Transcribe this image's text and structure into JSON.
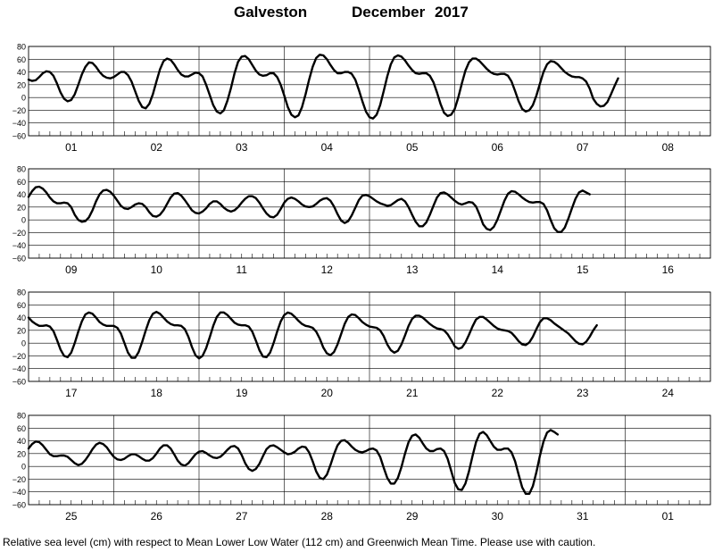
{
  "chart_data": {
    "type": "line",
    "title": {
      "location": "Galveston",
      "month": "December",
      "year": "2017"
    },
    "yticks": [
      80,
      60,
      40,
      20,
      0,
      -20,
      -40,
      -60
    ],
    "ylim": [
      -60,
      80
    ],
    "hours_per_day": 24,
    "grid": true,
    "panels": [
      {
        "day_labels": [
          "01",
          "02",
          "03",
          "04",
          "05",
          "06",
          "07",
          "08"
        ],
        "series_hourly": [
          28,
          26,
          27,
          32,
          38,
          41,
          40,
          34,
          22,
          8,
          -2,
          -6,
          -4,
          5,
          20,
          36,
          48,
          55,
          54,
          48,
          40,
          34,
          31,
          30,
          32,
          36,
          40,
          40,
          35,
          25,
          10,
          -5,
          -15,
          -17,
          -10,
          5,
          25,
          44,
          57,
          61,
          59,
          52,
          43,
          36,
          33,
          33,
          36,
          39,
          38,
          33,
          20,
          4,
          -12,
          -22,
          -25,
          -20,
          -5,
          15,
          38,
          56,
          64,
          65,
          60,
          51,
          42,
          36,
          34,
          35,
          38,
          38,
          32,
          20,
          3,
          -15,
          -27,
          -31,
          -28,
          -15,
          5,
          28,
          48,
          62,
          67,
          66,
          60,
          51,
          43,
          38,
          38,
          40,
          40,
          37,
          28,
          12,
          -6,
          -22,
          -31,
          -33,
          -27,
          -12,
          10,
          33,
          52,
          63,
          66,
          64,
          58,
          50,
          43,
          38,
          37,
          38,
          38,
          34,
          24,
          8,
          -10,
          -24,
          -29,
          -27,
          -18,
          0,
          22,
          42,
          55,
          61,
          61,
          57,
          51,
          45,
          40,
          37,
          36,
          37,
          37,
          34,
          25,
          10,
          -6,
          -18,
          -22,
          -20,
          -12,
          3,
          22,
          40,
          52,
          57,
          56,
          52,
          46,
          40,
          36,
          33,
          32,
          32,
          30,
          25,
          14,
          -2,
          -10,
          -14,
          -13,
          -7,
          5,
          18,
          30
        ]
      },
      {
        "day_labels": [
          "09",
          "10",
          "11",
          "12",
          "13",
          "14",
          "15",
          "16"
        ],
        "series_hourly": [
          36,
          45,
          51,
          52,
          49,
          43,
          35,
          29,
          26,
          26,
          27,
          26,
          20,
          8,
          0,
          -3,
          -2,
          4,
          15,
          29,
          40,
          46,
          47,
          44,
          38,
          30,
          22,
          18,
          17,
          20,
          24,
          26,
          25,
          20,
          12,
          6,
          5,
          8,
          15,
          25,
          35,
          41,
          42,
          38,
          31,
          23,
          15,
          11,
          10,
          13,
          18,
          25,
          29,
          29,
          25,
          19,
          15,
          13,
          15,
          20,
          27,
          33,
          37,
          37,
          34,
          27,
          18,
          10,
          5,
          4,
          8,
          17,
          27,
          33,
          35,
          33,
          29,
          24,
          21,
          20,
          21,
          25,
          30,
          33,
          34,
          30,
          21,
          9,
          -1,
          -5,
          -2,
          7,
          19,
          31,
          38,
          39,
          37,
          33,
          29,
          26,
          24,
          22,
          23,
          27,
          31,
          33,
          29,
          20,
          8,
          -3,
          -10,
          -10,
          -4,
          8,
          22,
          35,
          42,
          43,
          40,
          35,
          30,
          26,
          24,
          26,
          28,
          27,
          21,
          8,
          -7,
          -14,
          -16,
          -11,
          0,
          15,
          30,
          41,
          45,
          44,
          40,
          35,
          31,
          28,
          27,
          28,
          28,
          25,
          15,
          0,
          -13,
          -19,
          -19,
          -12,
          2,
          18,
          33,
          43,
          46,
          43,
          40
        ]
      },
      {
        "day_labels": [
          "17",
          "18",
          "19",
          "20",
          "21",
          "22",
          "23",
          "24"
        ],
        "series_hourly": [
          40,
          34,
          30,
          27,
          27,
          28,
          26,
          19,
          5,
          -10,
          -20,
          -22,
          -15,
          0,
          18,
          34,
          45,
          48,
          46,
          40,
          33,
          29,
          27,
          27,
          27,
          24,
          15,
          0,
          -15,
          -23,
          -23,
          -14,
          2,
          20,
          36,
          46,
          49,
          46,
          40,
          34,
          30,
          28,
          28,
          27,
          22,
          10,
          -6,
          -19,
          -24,
          -20,
          -8,
          9,
          27,
          41,
          48,
          48,
          44,
          38,
          32,
          29,
          28,
          28,
          26,
          18,
          4,
          -11,
          -21,
          -22,
          -15,
          0,
          18,
          34,
          44,
          48,
          46,
          41,
          35,
          30,
          27,
          26,
          24,
          18,
          7,
          -7,
          -16,
          -19,
          -14,
          -2,
          14,
          30,
          41,
          45,
          44,
          39,
          33,
          29,
          26,
          25,
          24,
          20,
          11,
          -2,
          -11,
          -15,
          -12,
          -2,
          12,
          27,
          38,
          43,
          43,
          40,
          35,
          30,
          26,
          23,
          22,
          20,
          14,
          5,
          -5,
          -9,
          -7,
          1,
          13,
          26,
          37,
          41,
          41,
          37,
          32,
          27,
          23,
          21,
          20,
          19,
          16,
          10,
          3,
          -2,
          -3,
          1,
          10,
          22,
          33,
          39,
          39,
          36,
          31,
          27,
          23,
          19,
          15,
          9,
          3,
          -1,
          -2,
          2,
          10,
          20,
          28
        ]
      },
      {
        "day_labels": [
          "25",
          "26",
          "27",
          "28",
          "29",
          "30",
          "31",
          "01"
        ],
        "series_hourly": [
          28,
          35,
          39,
          38,
          33,
          26,
          19,
          16,
          16,
          17,
          17,
          15,
          10,
          5,
          2,
          4,
          10,
          18,
          27,
          34,
          37,
          35,
          30,
          22,
          15,
          11,
          10,
          12,
          16,
          19,
          19,
          16,
          12,
          9,
          9,
          13,
          20,
          28,
          33,
          33,
          28,
          19,
          9,
          3,
          1,
          5,
          12,
          19,
          23,
          24,
          21,
          17,
          14,
          13,
          15,
          20,
          26,
          31,
          32,
          28,
          18,
          5,
          -4,
          -7,
          -4,
          4,
          16,
          27,
          32,
          33,
          30,
          26,
          22,
          19,
          20,
          23,
          28,
          31,
          30,
          22,
          8,
          -8,
          -18,
          -20,
          -13,
          2,
          19,
          33,
          40,
          41,
          37,
          31,
          26,
          23,
          22,
          24,
          27,
          28,
          25,
          15,
          -2,
          -18,
          -27,
          -27,
          -18,
          -1,
          20,
          38,
          48,
          50,
          45,
          36,
          28,
          24,
          24,
          27,
          28,
          24,
          12,
          -7,
          -26,
          -36,
          -37,
          -27,
          -8,
          16,
          38,
          51,
          54,
          49,
          40,
          31,
          26,
          26,
          28,
          28,
          22,
          8,
          -13,
          -33,
          -43,
          -43,
          -31,
          -9,
          17,
          39,
          53,
          57,
          54,
          50
        ]
      }
    ]
  },
  "footer": "Relative sea level (cm) with respect to Mean Lower Low Water (112 cm) and Greenwich Mean Time. Please use with caution."
}
